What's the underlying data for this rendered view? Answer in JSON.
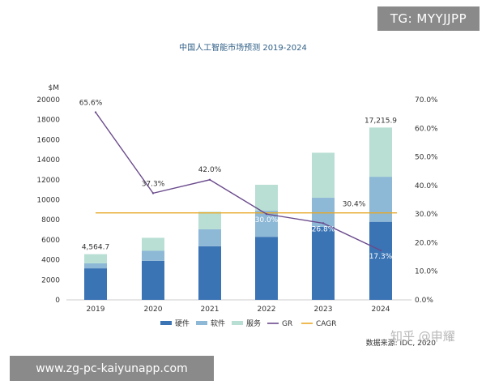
{
  "chart_data": {
    "type": "bar",
    "title": "中国人工智能市场预测 2019-2024",
    "ylabel": "$M",
    "categories": [
      "2019",
      "2020",
      "2021",
      "2022",
      "2023",
      "2024"
    ],
    "ylim": [
      0,
      20000
    ],
    "y_ticks": [
      "0",
      "2000",
      "4000",
      "6000",
      "8000",
      "10000",
      "12000",
      "14000",
      "16000",
      "18000",
      "20000"
    ],
    "y2lim": [
      0,
      70
    ],
    "y2_ticks": [
      "0.0%",
      "10.0%",
      "20.0%",
      "30.0%",
      "40.0%",
      "50.0%",
      "60.0%",
      "70.0%"
    ],
    "stacked": true,
    "series": [
      {
        "name": "硬件",
        "color": "#3b74b4",
        "values": [
          3150,
          3900,
          5350,
          6300,
          7300,
          7800
        ]
      },
      {
        "name": "软件",
        "color": "#8db8d6",
        "values": [
          500,
          1000,
          1700,
          2600,
          2900,
          4500
        ]
      },
      {
        "name": "服务",
        "color": "#b9dfd4",
        "values": [
          914.7,
          1300,
          1750,
          2600,
          4500,
          4915.9
        ]
      }
    ],
    "line_series": [
      {
        "name": "GR",
        "color": "#6a4a8c",
        "axis": "right",
        "values": [
          65.6,
          37.3,
          42.0,
          30.0,
          26.8,
          17.3
        ]
      }
    ],
    "cagr": {
      "name": "CAGR",
      "color": "#e9a825",
      "value": 30.4,
      "label": "30.4%"
    },
    "total_labels": [
      {
        "category": "2019",
        "text": "4,564.7"
      },
      {
        "category": "2024",
        "text": "17,215.9"
      }
    ],
    "gr_labels": [
      "65.6%",
      "37.3%",
      "42.0%",
      "30.0%",
      "26.8%",
      "17.3%"
    ],
    "source": "数据来源: IDC, 2020",
    "legend_position": "bottom"
  },
  "overlays": {
    "tg": "TG: MYYJJPP",
    "url": "www.zg-pc-kaiyunapp.com",
    "zhihu": "知乎 @申耀"
  }
}
